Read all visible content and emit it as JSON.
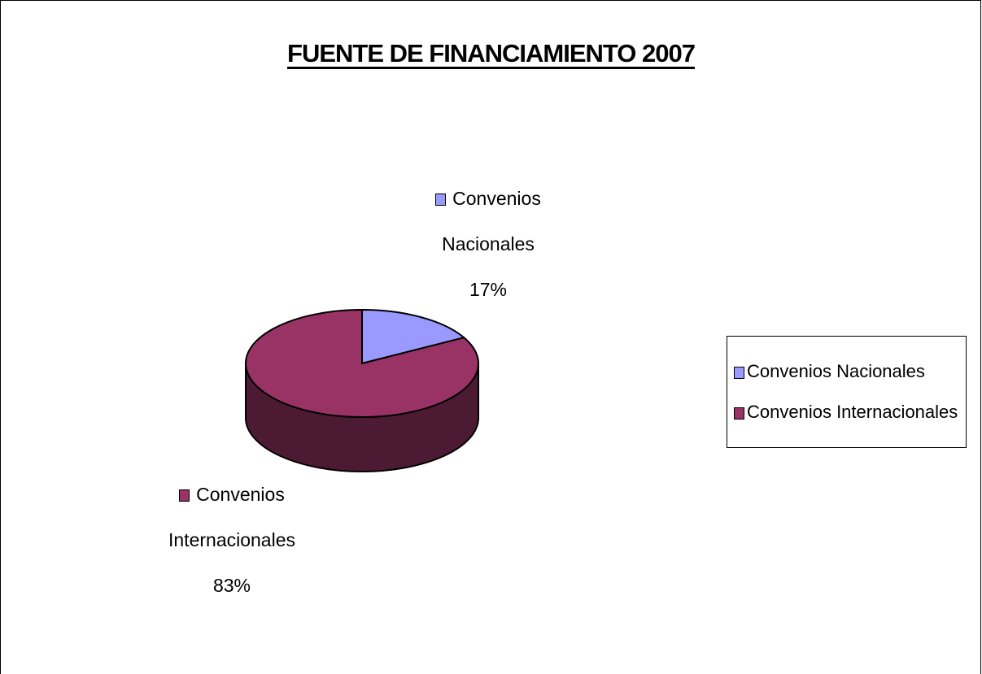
{
  "chart_data": {
    "type": "pie",
    "title": "FUENTE DE FINANCIAMIENTO 2007",
    "categories": [
      "Convenios Nacionales",
      "Convenios Internacionales"
    ],
    "values": [
      17,
      83
    ],
    "value_labels": [
      "17%",
      "83%"
    ],
    "colors": [
      "#9999ff",
      "#993366"
    ],
    "legend": "right"
  }
}
